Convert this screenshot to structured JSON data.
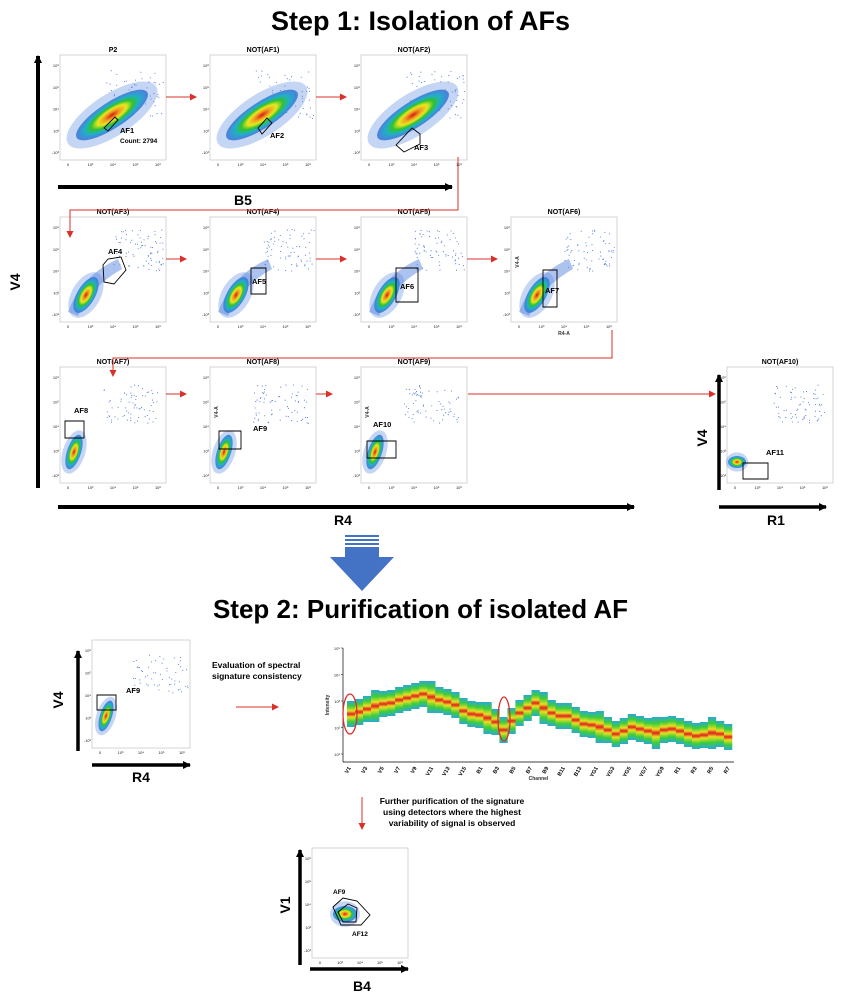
{
  "step1_title": "Step 1: Isolation of AFs",
  "step2_title": "Step 2: Purification of isolated AF",
  "big_axes": {
    "v4": "V4",
    "b5": "B5",
    "r4": "R4",
    "v4_right": "V4",
    "r1": "R1",
    "v4_step2": "V4",
    "r4_step2": "R4",
    "v1": "V1",
    "b4": "B4"
  },
  "plots": [
    {
      "id": "p2",
      "title": "P2",
      "gate": "AF1",
      "extra": "Count: 2794"
    },
    {
      "id": "notaf1",
      "title": "NOT(AF1)",
      "gate": "AF2"
    },
    {
      "id": "notaf2",
      "title": "NOT(AF2)",
      "gate": "AF3"
    },
    {
      "id": "notaf3",
      "title": "NOT(AF3)",
      "gate": "AF4"
    },
    {
      "id": "notaf4",
      "title": "NOT(AF4)",
      "gate": "AF5"
    },
    {
      "id": "notaf5",
      "title": "NOT(AF5)",
      "gate": "AF6"
    },
    {
      "id": "notaf6",
      "title": "NOT(AF6)",
      "gate": "AF7",
      "xaxis": "R4-A",
      "yaxis": "V4-A"
    },
    {
      "id": "notaf7",
      "title": "NOT(AF7)",
      "gate": "AF8"
    },
    {
      "id": "notaf8",
      "title": "NOT(AF8)",
      "gate": "AF9",
      "yaxis": "V4-A"
    },
    {
      "id": "notaf9",
      "title": "NOT(AF9)",
      "gate": "AF10",
      "yaxis": "V4-A"
    },
    {
      "id": "notaf10",
      "title": "NOT(AF10)",
      "gate": "AF11"
    }
  ],
  "step2_plot": {
    "gate": "AF9"
  },
  "purify_plot": {
    "gate1": "AF9",
    "gate2": "AF12"
  },
  "annotations": {
    "eval_line1": "Evaluation of spectral",
    "eval_line2": "signature consistency",
    "further_line1": "Further purification of the signature",
    "further_line2": "using detectors where the highest",
    "further_line3": "variability of signal is observed"
  },
  "spectral": {
    "ylabel": "Intensity",
    "xlabel": "Channel",
    "y_ticks": [
      "10¹",
      "10²",
      "10³",
      "10⁴",
      "10⁵"
    ],
    "channels": [
      "V1",
      "V3",
      "V5",
      "V7",
      "V9",
      "V11",
      "V13",
      "V15",
      "B1",
      "B3",
      "B5",
      "B7",
      "B9",
      "B11",
      "B13",
      "YG1",
      "YG3",
      "YG5",
      "YG7",
      "YG9",
      "R1",
      "R3",
      "R5",
      "R7"
    ]
  },
  "tick_labels": {
    "ticks": [
      "10⁶",
      "10⁵",
      "10⁴",
      "10³",
      "-10³"
    ],
    "xticks": [
      "0",
      "10³",
      "10⁴",
      "10⁵",
      "10⁶"
    ]
  },
  "colors": {
    "arrow": "#d9302a",
    "down_arrow": "#4472c4",
    "density_hi": "#e02020",
    "density_mid": "#30c030",
    "density_low": "#3a6fd8"
  }
}
